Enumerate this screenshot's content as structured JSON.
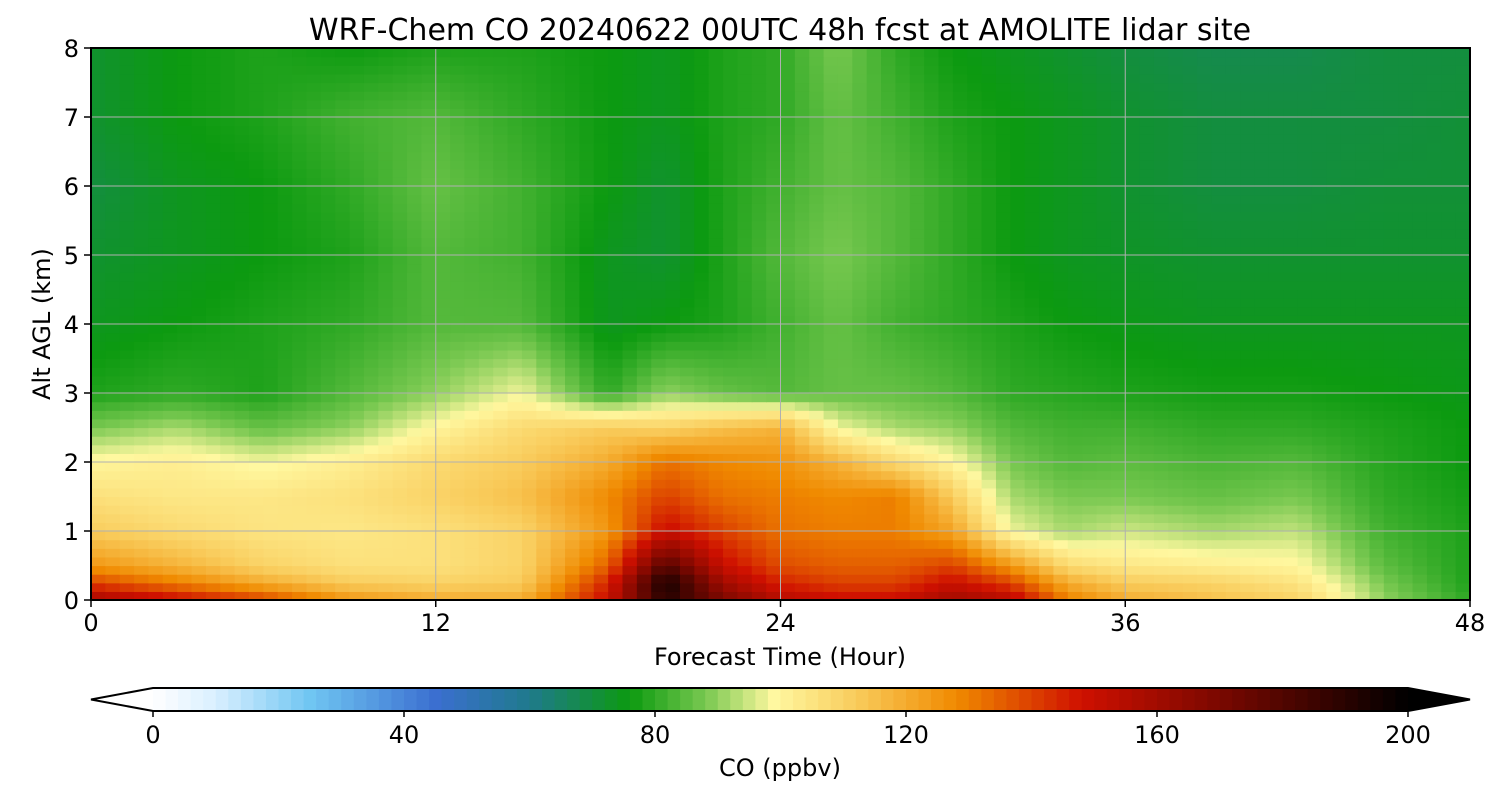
{
  "chart_data": {
    "type": "heatmap",
    "title": "WRF-Chem CO  20240622 00UTC 48h fcst at AMOLITE lidar site",
    "xlabel": "Forecast Time (Hour)",
    "ylabel": "Alt AGL (km)",
    "xlim": [
      0,
      48
    ],
    "ylim": [
      0,
      8
    ],
    "x_ticks": [
      "0",
      "12",
      "24",
      "36",
      "48"
    ],
    "y_ticks": [
      "0",
      "1",
      "2",
      "3",
      "4",
      "5",
      "6",
      "7",
      "8"
    ],
    "grid": true,
    "x": [
      0,
      3,
      6,
      9,
      12,
      15,
      18,
      20,
      22,
      24,
      26,
      28,
      30,
      32,
      34,
      36,
      39,
      42,
      45,
      48
    ],
    "y": [
      0,
      0.25,
      0.5,
      1,
      1.5,
      2,
      2.5,
      3,
      4,
      5,
      6,
      7,
      8
    ],
    "z": [
      [
        160,
        150,
        140,
        125,
        120,
        120,
        150,
        190,
        170,
        155,
        150,
        150,
        160,
        155,
        130,
        120,
        115,
        110,
        90,
        80
      ],
      [
        140,
        130,
        120,
        112,
        110,
        112,
        145,
        195,
        160,
        145,
        140,
        140,
        150,
        140,
        120,
        112,
        110,
        105,
        88,
        78
      ],
      [
        125,
        118,
        110,
        106,
        106,
        110,
        135,
        180,
        150,
        138,
        135,
        135,
        140,
        125,
        108,
        104,
        102,
        100,
        85,
        78
      ],
      [
        112,
        108,
        105,
        104,
        106,
        110,
        125,
        150,
        140,
        132,
        130,
        130,
        122,
        98,
        92,
        95,
        92,
        94,
        82,
        78
      ],
      [
        106,
        104,
        104,
        106,
        110,
        115,
        128,
        140,
        132,
        130,
        128,
        130,
        112,
        92,
        88,
        88,
        86,
        88,
        80,
        77
      ],
      [
        100,
        102,
        98,
        102,
        108,
        112,
        120,
        132,
        128,
        126,
        118,
        108,
        100,
        88,
        84,
        85,
        83,
        84,
        79,
        76
      ],
      [
        88,
        92,
        86,
        90,
        100,
        108,
        112,
        110,
        115,
        118,
        98,
        92,
        90,
        84,
        82,
        82,
        80,
        80,
        78,
        76
      ],
      [
        78,
        80,
        78,
        84,
        90,
        98,
        80,
        90,
        86,
        84,
        86,
        86,
        84,
        80,
        79,
        78,
        77,
        77,
        76,
        75
      ],
      [
        74,
        76,
        78,
        80,
        84,
        84,
        74,
        76,
        78,
        82,
        86,
        82,
        80,
        78,
        76,
        75,
        74,
        74,
        74,
        74
      ],
      [
        72,
        74,
        76,
        78,
        84,
        82,
        74,
        72,
        78,
        84,
        88,
        84,
        80,
        76,
        74,
        73,
        72,
        72,
        72,
        72
      ],
      [
        70,
        74,
        76,
        80,
        86,
        82,
        76,
        72,
        78,
        82,
        86,
        84,
        80,
        76,
        74,
        72,
        70,
        70,
        71,
        71
      ],
      [
        72,
        76,
        78,
        82,
        84,
        80,
        76,
        74,
        78,
        80,
        86,
        82,
        78,
        76,
        74,
        72,
        70,
        70,
        70,
        71
      ],
      [
        72,
        76,
        78,
        76,
        78,
        78,
        76,
        74,
        78,
        80,
        88,
        80,
        76,
        74,
        72,
        70,
        68,
        68,
        70,
        70
      ]
    ],
    "colorbar": {
      "label": "CO  (ppbv)",
      "min": 0,
      "max": 200,
      "ticks": [
        "0",
        "40",
        "80",
        "120",
        "160",
        "200"
      ],
      "extend": "both",
      "stops": [
        {
          "v": 0,
          "c": "#ffffff"
        },
        {
          "v": 10,
          "c": "#d9efff"
        },
        {
          "v": 25,
          "c": "#70c6f2"
        },
        {
          "v": 45,
          "c": "#3b6fd0"
        },
        {
          "v": 60,
          "c": "#1f7a8c"
        },
        {
          "v": 76,
          "c": "#0c9a10"
        },
        {
          "v": 88,
          "c": "#78c850"
        },
        {
          "v": 99,
          "c": "#fff8a0"
        },
        {
          "v": 112,
          "c": "#f9cc5c"
        },
        {
          "v": 128,
          "c": "#f08a00"
        },
        {
          "v": 148,
          "c": "#cf1000"
        },
        {
          "v": 170,
          "c": "#7a0800"
        },
        {
          "v": 200,
          "c": "#000000"
        }
      ]
    }
  }
}
